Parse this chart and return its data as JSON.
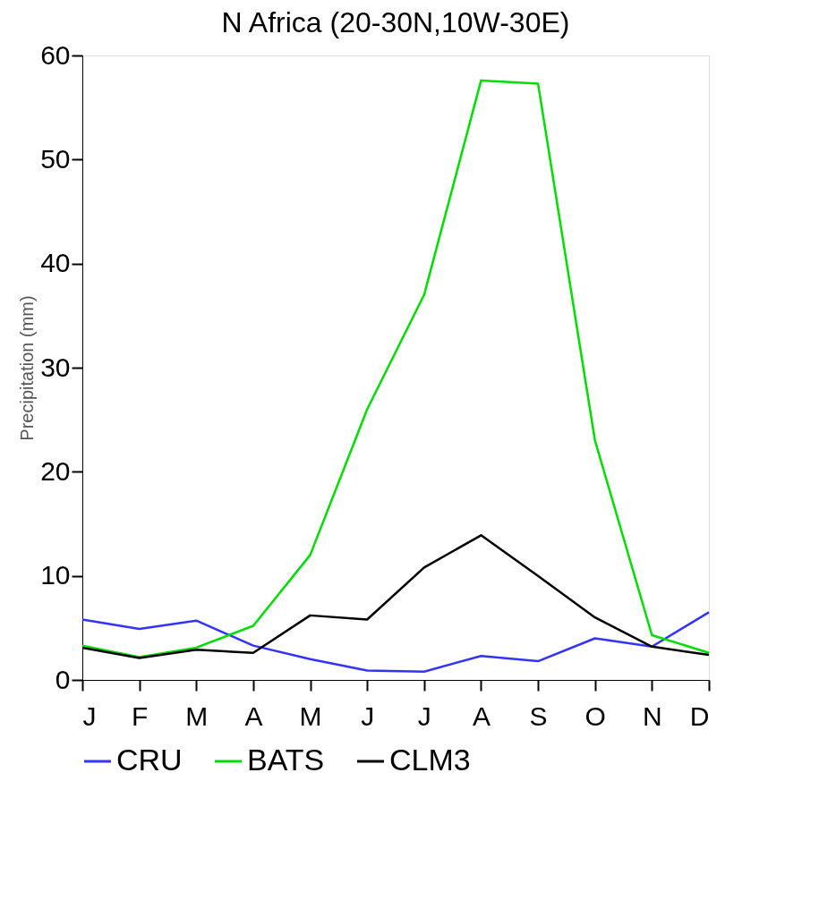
{
  "chart_data": {
    "type": "line",
    "title": "N Africa (20-30N,10W-30E)",
    "ylabel": "Precipitation (mm)",
    "categories": [
      "J",
      "F",
      "M",
      "A",
      "M",
      "J",
      "J",
      "A",
      "S",
      "O",
      "N",
      "D"
    ],
    "ylim": [
      0,
      60
    ],
    "yticks": [
      0,
      10,
      20,
      30,
      40,
      50,
      60
    ],
    "grid": false,
    "legend": "bottom",
    "marker": "none",
    "line_style": "solid",
    "series": [
      {
        "name": "CRU",
        "color": "#3333ff",
        "values": [
          5.8,
          4.9,
          5.7,
          3.3,
          2.0,
          0.9,
          0.8,
          2.3,
          1.8,
          4.0,
          3.2,
          6.5
        ]
      },
      {
        "name": "BATS",
        "color": "#00dd00",
        "values": [
          3.3,
          2.2,
          3.1,
          5.2,
          12.0,
          26,
          37,
          57.6,
          57.3,
          23,
          4.3,
          2.6
        ]
      },
      {
        "name": "CLM3",
        "color": "#000000",
        "values": [
          3.1,
          2.1,
          2.9,
          2.6,
          6.2,
          5.8,
          10.8,
          13.9,
          10.0,
          6.0,
          3.2,
          2.4
        ]
      }
    ]
  }
}
